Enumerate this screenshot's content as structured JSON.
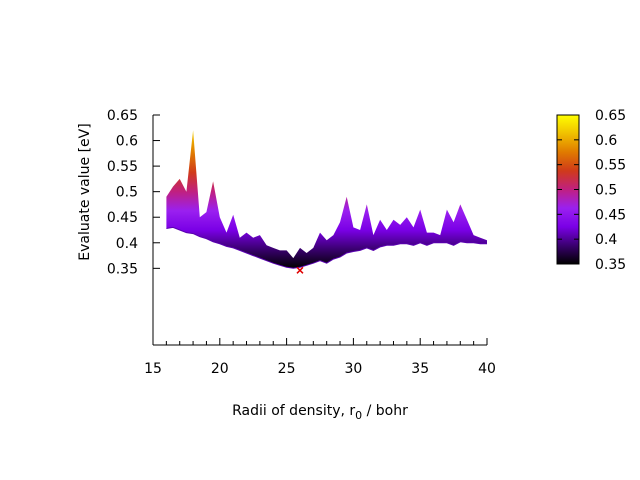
{
  "chart_data": {
    "type": "area",
    "title": "",
    "xlabel": {
      "main": "Radii of density, r",
      "sub": "0",
      "tail": " / bohr"
    },
    "ylabel": "Evaluate value [eV]",
    "xlim": [
      15,
      40
    ],
    "ylim": [
      0.2,
      0.65
    ],
    "x_ticks": [
      "15",
      "20",
      "25",
      "30",
      "35",
      "40"
    ],
    "x_tick_values": [
      15,
      20,
      25,
      30,
      35,
      40
    ],
    "y_ticks": [
      "0.35",
      "0.4",
      "0.45",
      "0.5",
      "0.55",
      "0.6",
      "0.65"
    ],
    "y_tick_values": [
      0.35,
      0.4,
      0.45,
      0.5,
      0.55,
      0.6,
      0.65
    ],
    "colorbar": {
      "range": [
        0.35,
        0.65
      ],
      "ticks": [
        "0.35",
        "0.4",
        "0.45",
        "0.5",
        "0.55",
        "0.6",
        "0.65"
      ],
      "tick_values": [
        0.35,
        0.4,
        0.45,
        0.5,
        0.55,
        0.6,
        0.65
      ]
    },
    "series": [
      {
        "x": [
          16,
          16.5,
          17,
          17.5,
          18,
          18.5,
          19,
          19.5,
          20,
          20.5,
          21,
          21.5,
          22,
          22.5,
          23,
          23.5,
          24,
          24.5,
          25,
          25.5,
          26,
          26.5,
          27,
          27.5,
          28,
          28.5,
          29,
          29.5,
          30,
          30.5,
          31,
          31.5,
          32,
          32.5,
          33,
          33.5,
          34,
          34.5,
          35,
          35.5,
          36,
          36.5,
          37,
          37.5,
          38,
          38.5,
          39,
          39.5,
          40
        ],
        "upper": [
          0.49,
          0.51,
          0.525,
          0.5,
          0.62,
          0.45,
          0.46,
          0.52,
          0.45,
          0.42,
          0.455,
          0.41,
          0.42,
          0.41,
          0.415,
          0.395,
          0.39,
          0.385,
          0.385,
          0.37,
          0.39,
          0.38,
          0.39,
          0.42,
          0.405,
          0.415,
          0.44,
          0.49,
          0.43,
          0.425,
          0.475,
          0.415,
          0.445,
          0.425,
          0.445,
          0.435,
          0.45,
          0.43,
          0.465,
          0.42,
          0.42,
          0.415,
          0.465,
          0.44,
          0.475,
          0.445,
          0.415,
          0.41,
          0.405
        ],
        "lower": [
          0.428,
          0.43,
          0.425,
          0.42,
          0.418,
          0.412,
          0.408,
          0.402,
          0.398,
          0.393,
          0.39,
          0.385,
          0.38,
          0.375,
          0.37,
          0.365,
          0.36,
          0.356,
          0.352,
          0.35,
          0.352,
          0.356,
          0.36,
          0.365,
          0.36,
          0.368,
          0.372,
          0.38,
          0.383,
          0.385,
          0.39,
          0.385,
          0.392,
          0.395,
          0.395,
          0.398,
          0.398,
          0.395,
          0.4,
          0.395,
          0.4,
          0.4,
          0.4,
          0.395,
          0.402,
          0.4,
          0.4,
          0.398,
          0.398
        ]
      }
    ],
    "minimum_marker": {
      "x": 26,
      "y": 0.352,
      "color": "#e00000"
    },
    "palette": [
      "#000000",
      "#3a0070",
      "#7a00e6",
      "#9a20f0",
      "#c02080",
      "#d03a1a",
      "#e07a00",
      "#f0c000",
      "#ffff00"
    ]
  }
}
